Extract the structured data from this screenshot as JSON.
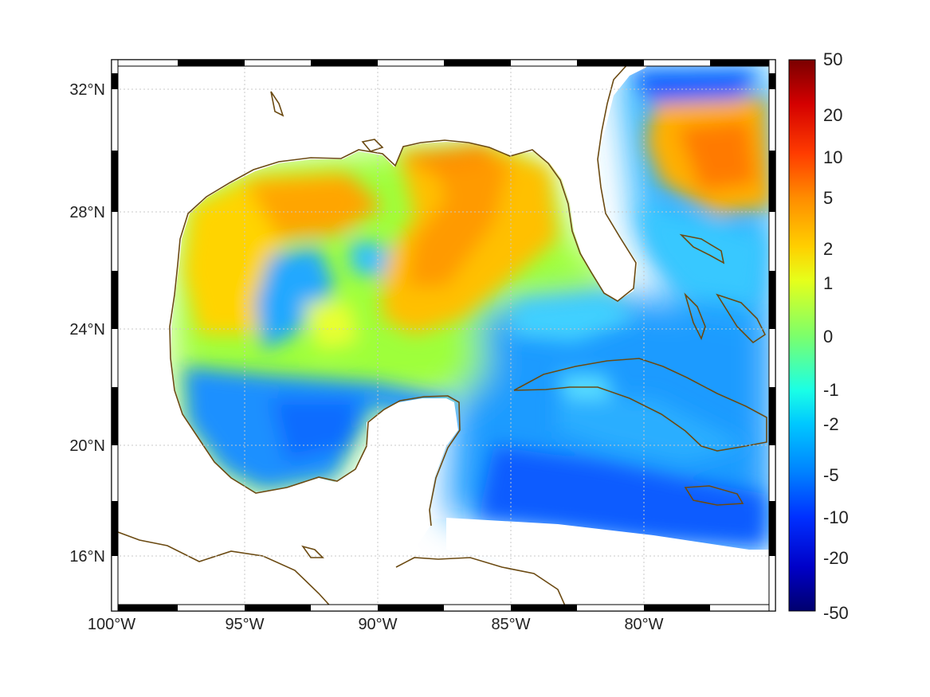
{
  "map": {
    "lat_labels": [
      "32°N",
      "28°N",
      "24°N",
      "20°N",
      "16°N"
    ],
    "lon_labels": [
      "100°W",
      "95°W",
      "90°W",
      "85°W",
      "80°W"
    ],
    "colors": {
      "coastline": "#6b4a12",
      "land": "#ffffff",
      "grid": "#c8c8c8",
      "frame_dark": "#000000",
      "frame_light": "#ffffff"
    }
  },
  "colorbar": {
    "labels": [
      "50",
      "20",
      "10",
      "5",
      "2",
      "1",
      "0",
      "-1",
      "-2",
      "-5",
      "-10",
      "-20",
      "-50"
    ],
    "colors": [
      "#7a0000",
      "#d40000",
      "#ff3c00",
      "#ff8c00",
      "#ffd000",
      "#e6ff1a",
      "#7dff6a",
      "#1affe6",
      "#00c8ff",
      "#0080ff",
      "#0030ff",
      "#0000c8",
      "#00006e"
    ]
  }
}
